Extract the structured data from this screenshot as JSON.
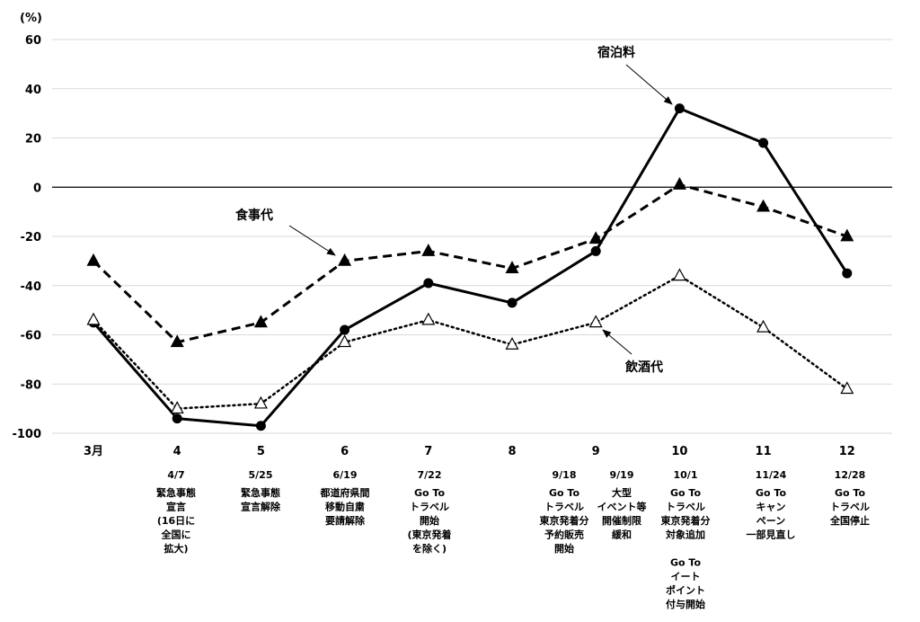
{
  "chart_data": {
    "type": "line",
    "unit": "(%)",
    "categories": [
      "3月",
      "4",
      "5",
      "6",
      "7",
      "8",
      "9",
      "10",
      "11",
      "12"
    ],
    "ylim": [
      -100,
      60
    ],
    "yticks": [
      60,
      40,
      20,
      0,
      -20,
      -40,
      -60,
      -80,
      -100
    ],
    "grid": true,
    "series": [
      {
        "name": "宿泊料",
        "style": "solid",
        "marker": "circle",
        "values": [
          -55,
          -94,
          -97,
          -58,
          -39,
          -47,
          -26,
          32,
          18,
          -35
        ]
      },
      {
        "name": "食事代",
        "style": "dashed",
        "marker": "filled-triangle",
        "values": [
          -30,
          -63,
          -55,
          -30,
          -26,
          -33,
          -21,
          1,
          -8,
          -20
        ]
      },
      {
        "name": "飲酒代",
        "style": "dotted",
        "marker": "open-triangle",
        "values": [
          -54,
          -90,
          -88,
          -63,
          -54,
          -64,
          -55,
          -36,
          -57,
          -82
        ]
      }
    ],
    "annotations": [
      {
        "date": "4/7",
        "lines": [
          "緊急事態",
          "宣言",
          "(16日に",
          "全国に",
          "拡大)"
        ]
      },
      {
        "date": "5/25",
        "lines": [
          "緊急事態",
          "宣言解除"
        ]
      },
      {
        "date": "6/19",
        "lines": [
          "都道府県間",
          "移動自粛",
          "要請解除"
        ]
      },
      {
        "date": "7/22",
        "lines": [
          "Go To",
          "トラベル",
          "開始",
          "(東京発着",
          "を除く)"
        ]
      },
      {
        "date": "9/18",
        "lines": [
          "Go To",
          "トラベル",
          "東京発着分",
          "予約販売",
          "開始"
        ]
      },
      {
        "date": "9/19",
        "lines": [
          "大型",
          "イベント等",
          "開催制限",
          "緩和"
        ]
      },
      {
        "date": "10/1",
        "lines": [
          "Go To",
          "トラベル",
          "東京発着分",
          "対象追加",
          "",
          "Go To",
          "イート",
          "ポイント",
          "付与開始"
        ]
      },
      {
        "date": "11/24",
        "lines": [
          "Go To",
          "キャン",
          "ペーン",
          "一部見直し"
        ]
      },
      {
        "date": "12/28",
        "lines": [
          "Go To",
          "トラベル",
          "全国停止"
        ]
      }
    ]
  }
}
